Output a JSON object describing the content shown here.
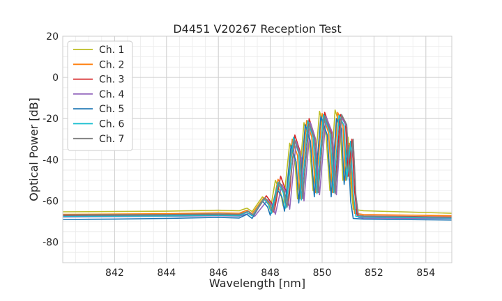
{
  "chart_data": {
    "type": "line",
    "title": "D4451 V20267 Reception Test",
    "xlabel": "Wavelength [nm]",
    "ylabel": "Optical Power [dB]",
    "xlim": [
      840,
      855
    ],
    "ylim": [
      -90,
      20
    ],
    "x_ticks": [
      842,
      844,
      846,
      848,
      850,
      852,
      854
    ],
    "y_ticks": [
      20,
      0,
      -20,
      -40,
      -60,
      -80
    ],
    "x_minor_step": 0.5,
    "y_minor_step": 5,
    "grid": true,
    "legend_position": "top-left",
    "series": [
      {
        "name": "Ch. 1",
        "color": "#bcbd22",
        "points": [
          [
            840,
            -65.3
          ],
          [
            844,
            -65.0
          ],
          [
            846,
            -64.5
          ],
          [
            846.8,
            -64.8
          ],
          [
            847.1,
            -63.5
          ],
          [
            847.3,
            -65.2
          ],
          [
            847.7,
            -58.0
          ],
          [
            847.9,
            -60.5
          ],
          [
            848.0,
            -64.5
          ],
          [
            848.2,
            -50.0
          ],
          [
            848.4,
            -56.0
          ],
          [
            848.5,
            -62.5
          ],
          [
            848.75,
            -32.0
          ],
          [
            848.95,
            -40.0
          ],
          [
            849.05,
            -59.0
          ],
          [
            849.3,
            -22.0
          ],
          [
            849.5,
            -30.0
          ],
          [
            849.65,
            -55.0
          ],
          [
            849.9,
            -16.5
          ],
          [
            850.15,
            -28.0
          ],
          [
            850.3,
            -55.0
          ],
          [
            850.5,
            -15.8
          ],
          [
            850.7,
            -24.0
          ],
          [
            850.8,
            -50.0
          ],
          [
            851.0,
            -29.0
          ],
          [
            851.1,
            -50.0
          ],
          [
            851.2,
            -64.0
          ],
          [
            851.6,
            -64.8
          ],
          [
            855,
            -66.0
          ]
        ]
      },
      {
        "name": "Ch. 2",
        "color": "#ff7f0e",
        "points": [
          [
            840,
            -66.5
          ],
          [
            844,
            -66.2
          ],
          [
            846,
            -65.8
          ],
          [
            846.8,
            -66.0
          ],
          [
            847.1,
            -64.5
          ],
          [
            847.3,
            -66.2
          ],
          [
            847.75,
            -58.5
          ],
          [
            847.95,
            -61.0
          ],
          [
            848.05,
            -65.0
          ],
          [
            848.3,
            -49.5
          ],
          [
            848.5,
            -55.0
          ],
          [
            848.6,
            -62.5
          ],
          [
            848.85,
            -30.0
          ],
          [
            849.05,
            -38.0
          ],
          [
            849.15,
            -59.0
          ],
          [
            849.4,
            -21.0
          ],
          [
            849.6,
            -29.0
          ],
          [
            849.75,
            -56.0
          ],
          [
            850.0,
            -17.5
          ],
          [
            850.25,
            -27.0
          ],
          [
            850.4,
            -56.0
          ],
          [
            850.6,
            -17.0
          ],
          [
            850.8,
            -23.0
          ],
          [
            850.9,
            -50.0
          ],
          [
            851.05,
            -32.0
          ],
          [
            851.15,
            -52.0
          ],
          [
            851.25,
            -66.0
          ],
          [
            851.6,
            -66.6
          ],
          [
            855,
            -67.2
          ]
        ]
      },
      {
        "name": "Ch. 3",
        "color": "#d62728",
        "points": [
          [
            840,
            -67.2
          ],
          [
            844,
            -67.0
          ],
          [
            846,
            -66.7
          ],
          [
            846.8,
            -66.9
          ],
          [
            847.15,
            -65.0
          ],
          [
            847.35,
            -67.0
          ],
          [
            847.85,
            -57.5
          ],
          [
            848.05,
            -61.0
          ],
          [
            848.15,
            -65.5
          ],
          [
            848.4,
            -48.0
          ],
          [
            848.6,
            -55.0
          ],
          [
            848.7,
            -62.0
          ],
          [
            848.95,
            -28.0
          ],
          [
            849.15,
            -36.0
          ],
          [
            849.25,
            -58.0
          ],
          [
            849.5,
            -20.0
          ],
          [
            849.7,
            -28.0
          ],
          [
            849.85,
            -55.0
          ],
          [
            850.1,
            -17.0
          ],
          [
            850.35,
            -26.0
          ],
          [
            850.5,
            -54.0
          ],
          [
            850.7,
            -18.0
          ],
          [
            850.9,
            -22.0
          ],
          [
            851.0,
            -48.0
          ],
          [
            851.15,
            -30.0
          ],
          [
            851.25,
            -55.0
          ],
          [
            851.35,
            -67.0
          ],
          [
            851.6,
            -67.3
          ],
          [
            855,
            -67.8
          ]
        ]
      },
      {
        "name": "Ch. 4",
        "color": "#9467bd",
        "points": [
          [
            840,
            -67.8
          ],
          [
            844,
            -67.5
          ],
          [
            846,
            -67.2
          ],
          [
            846.8,
            -67.4
          ],
          [
            847.2,
            -66.0
          ],
          [
            847.4,
            -67.5
          ],
          [
            847.9,
            -59.5
          ],
          [
            848.1,
            -62.5
          ],
          [
            848.2,
            -66.5
          ],
          [
            848.45,
            -52.0
          ],
          [
            848.65,
            -57.0
          ],
          [
            848.75,
            -64.0
          ],
          [
            849.0,
            -31.0
          ],
          [
            849.2,
            -39.0
          ],
          [
            849.3,
            -60.0
          ],
          [
            849.55,
            -22.0
          ],
          [
            849.75,
            -30.0
          ],
          [
            849.9,
            -57.0
          ],
          [
            850.15,
            -19.0
          ],
          [
            850.4,
            -27.0
          ],
          [
            850.55,
            -57.0
          ],
          [
            850.75,
            -19.5
          ],
          [
            850.95,
            -24.0
          ],
          [
            851.05,
            -50.0
          ],
          [
            851.2,
            -31.0
          ],
          [
            851.3,
            -58.0
          ],
          [
            851.4,
            -68.0
          ],
          [
            851.6,
            -68.3
          ],
          [
            855,
            -68.5
          ]
        ]
      },
      {
        "name": "Ch. 5",
        "color": "#1f77b4",
        "points": [
          [
            840,
            -69.0
          ],
          [
            842,
            -68.8
          ],
          [
            844,
            -68.5
          ],
          [
            846,
            -68.0
          ],
          [
            846.8,
            -68.3
          ],
          [
            847.1,
            -66.5
          ],
          [
            847.3,
            -68.5
          ],
          [
            847.7,
            -60.0
          ],
          [
            847.9,
            -63.0
          ],
          [
            848.0,
            -67.0
          ],
          [
            848.25,
            -54.0
          ],
          [
            848.45,
            -58.0
          ],
          [
            848.55,
            -65.0
          ],
          [
            848.8,
            -33.0
          ],
          [
            849.0,
            -41.0
          ],
          [
            849.1,
            -61.0
          ],
          [
            849.35,
            -23.0
          ],
          [
            849.55,
            -31.0
          ],
          [
            849.7,
            -58.0
          ],
          [
            849.95,
            -19.0
          ],
          [
            850.2,
            -28.0
          ],
          [
            850.35,
            -58.0
          ],
          [
            850.55,
            -20.0
          ],
          [
            850.75,
            -25.0
          ],
          [
            850.85,
            -52.0
          ],
          [
            851.0,
            -33.0
          ],
          [
            851.1,
            -60.0
          ],
          [
            851.2,
            -68.5
          ],
          [
            851.6,
            -68.8
          ],
          [
            855,
            -69.3
          ]
        ]
      },
      {
        "name": "Ch. 6",
        "color": "#17becf",
        "points": [
          [
            840,
            -67.5
          ],
          [
            844,
            -67.3
          ],
          [
            846,
            -67.0
          ],
          [
            846.8,
            -67.2
          ],
          [
            847.1,
            -65.5
          ],
          [
            847.3,
            -67.3
          ],
          [
            847.75,
            -59.0
          ],
          [
            847.95,
            -62.0
          ],
          [
            848.05,
            -66.0
          ],
          [
            848.3,
            -51.0
          ],
          [
            848.5,
            -56.0
          ],
          [
            848.6,
            -63.5
          ],
          [
            848.9,
            -29.0
          ],
          [
            849.1,
            -37.0
          ],
          [
            849.2,
            -59.5
          ],
          [
            849.45,
            -21.0
          ],
          [
            849.65,
            -29.0
          ],
          [
            849.8,
            -56.5
          ],
          [
            850.05,
            -18.0
          ],
          [
            850.3,
            -27.0
          ],
          [
            850.45,
            -56.0
          ],
          [
            850.65,
            -18.5
          ],
          [
            850.85,
            -23.5
          ],
          [
            850.95,
            -50.0
          ],
          [
            851.1,
            -31.0
          ],
          [
            851.2,
            -56.0
          ],
          [
            851.3,
            -67.5
          ],
          [
            851.6,
            -67.8
          ],
          [
            855,
            -68.3
          ]
        ]
      },
      {
        "name": "Ch. 7",
        "color": "#7f7f7f",
        "points": [
          [
            840,
            -66.8
          ],
          [
            844,
            -66.6
          ],
          [
            846,
            -66.3
          ],
          [
            846.8,
            -66.5
          ],
          [
            847.15,
            -65.0
          ],
          [
            847.35,
            -66.8
          ],
          [
            847.8,
            -58.5
          ],
          [
            848.0,
            -61.5
          ],
          [
            848.1,
            -65.5
          ],
          [
            848.35,
            -50.5
          ],
          [
            848.55,
            -56.0
          ],
          [
            848.65,
            -63.0
          ],
          [
            848.95,
            -30.5
          ],
          [
            849.15,
            -38.0
          ],
          [
            849.25,
            -59.0
          ],
          [
            849.5,
            -22.0
          ],
          [
            849.7,
            -29.5
          ],
          [
            849.85,
            -56.0
          ],
          [
            850.1,
            -18.5
          ],
          [
            850.35,
            -27.5
          ],
          [
            850.5,
            -56.5
          ],
          [
            850.75,
            -18.0
          ],
          [
            850.95,
            -23.0
          ],
          [
            851.05,
            -49.0
          ],
          [
            851.2,
            -30.0
          ],
          [
            851.3,
            -57.0
          ],
          [
            851.4,
            -67.0
          ],
          [
            851.6,
            -67.4
          ],
          [
            855,
            -68.0
          ]
        ]
      }
    ]
  }
}
